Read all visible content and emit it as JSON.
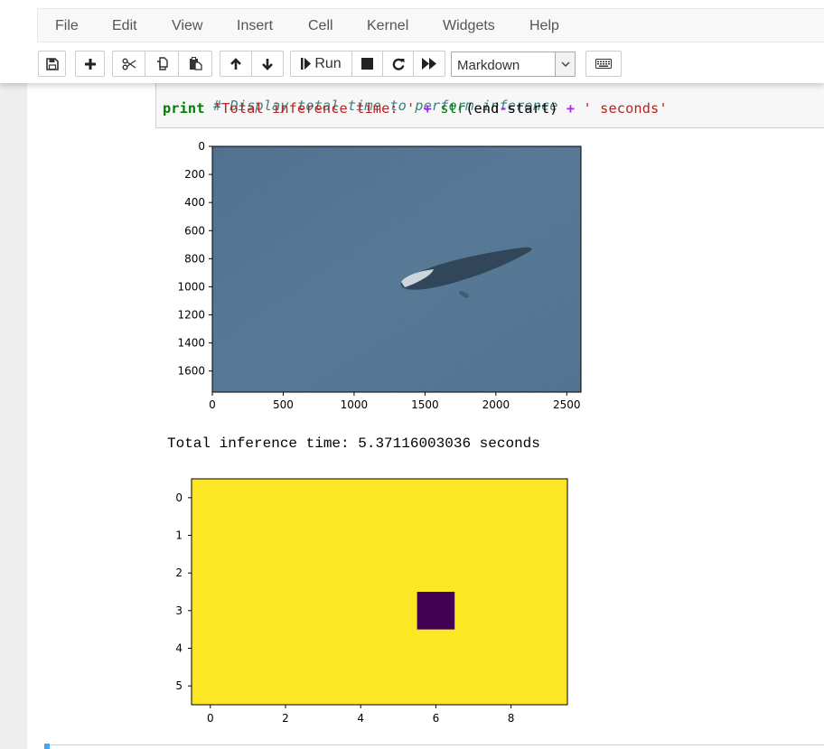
{
  "menu": {
    "items": [
      "File",
      "Edit",
      "View",
      "Insert",
      "Cell",
      "Kernel",
      "Widgets",
      "Help"
    ]
  },
  "toolbar": {
    "run_label": "Run",
    "cell_type": "Markdown",
    "icons": [
      "save-icon",
      "plus-icon",
      "cut-icon",
      "copy-icon",
      "paste-icon",
      "arrow-up-icon",
      "arrow-down-icon",
      "step-icon",
      "stop-icon",
      "restart-icon",
      "fast-forward-icon",
      "chevron-down-icon",
      "keyboard-icon"
    ]
  },
  "code": {
    "comment": "# Display total time to perform inference",
    "print_kw": "print",
    "str1": "'Total inference time: '",
    "op1": "+",
    "builtin": "str",
    "args": "(end",
    "minus": "-",
    "args2": "start)",
    "op2": "+",
    "str2": "' seconds'"
  },
  "output": {
    "text": "Total inference time: 5.37116003036 seconds"
  },
  "chart_data": [
    {
      "type": "image",
      "description_free": true,
      "x_ticks": [
        "0",
        "500",
        "1000",
        "1500",
        "2000",
        "2500"
      ],
      "y_ticks": [
        "0",
        "200",
        "400",
        "600",
        "800",
        "1000",
        "1200",
        "1400",
        "1600"
      ],
      "xlim": [
        0,
        2600
      ],
      "ylim": [
        1750,
        0
      ]
    },
    {
      "type": "heatmap",
      "x_ticks": [
        "0",
        "2",
        "4",
        "6",
        "8"
      ],
      "y_ticks": [
        "0",
        "1",
        "2",
        "3",
        "4",
        "5"
      ],
      "xlim": [
        -0.5,
        9.5
      ],
      "ylim": [
        5.5,
        -0.5
      ],
      "rows": 6,
      "cols": 10,
      "background_value": 1,
      "low_cells": [
        {
          "row": 3,
          "col": 6,
          "value": 0
        }
      ],
      "colors": {
        "high": "#fde725",
        "low": "#440154"
      }
    }
  ]
}
